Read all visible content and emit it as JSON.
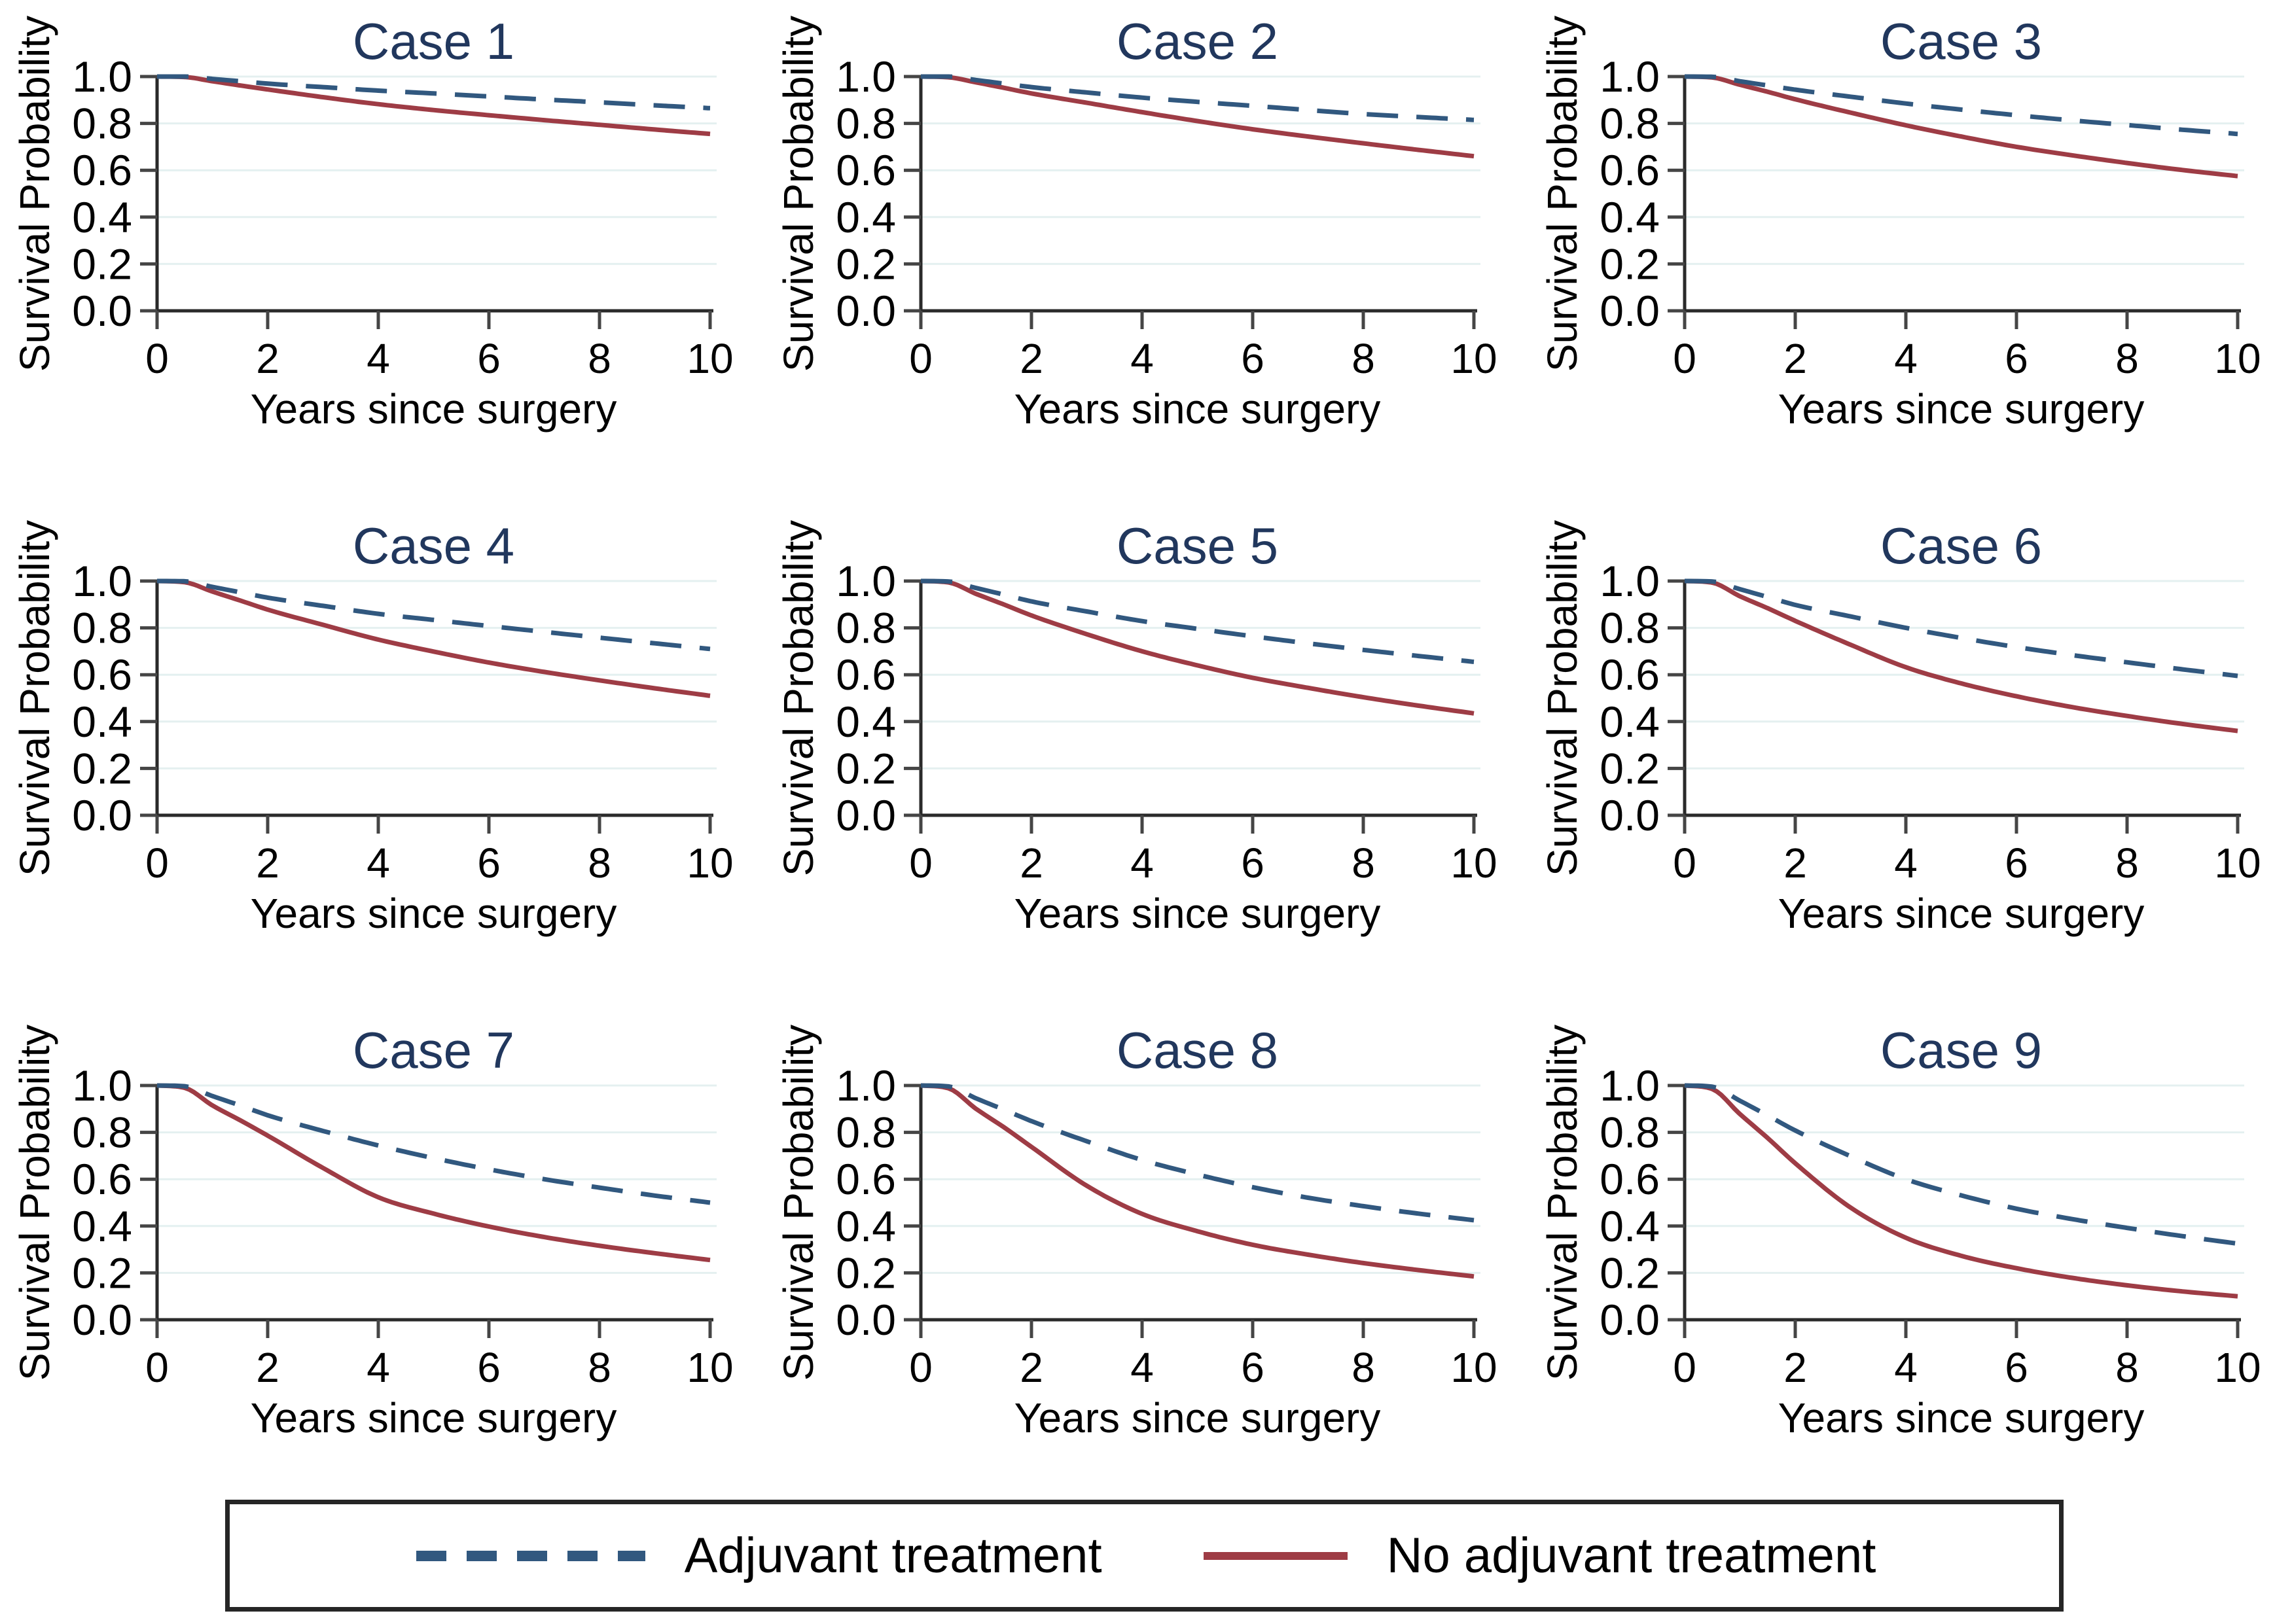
{
  "figure": {
    "colors": {
      "adjuvant_line": "#31587f",
      "no_adjuvant_line": "#9e3c45",
      "panel_title": "#21375d",
      "grid_line": "#e4f0f0",
      "axis_line": "#2a2a2a",
      "tick_mark": "#454545",
      "tick_label": "#000000",
      "legend_border": "#262626",
      "background": "#ffffff"
    },
    "legend": {
      "items": [
        {
          "label": "Adjuvant treatment",
          "style": "dashed",
          "color_key": "adjuvant_line"
        },
        {
          "label": "No adjuvant treatment",
          "style": "solid",
          "color_key": "no_adjuvant_line"
        }
      ]
    }
  },
  "chart_data": [
    {
      "type": "line",
      "title": "Case 1",
      "xlabel": "Years since surgery",
      "ylabel": "Survival Probability",
      "xlim": [
        0,
        10
      ],
      "ylim": [
        0.0,
        1.0
      ],
      "xticks": [
        0,
        2,
        4,
        6,
        8,
        10
      ],
      "yticks": [
        0.0,
        0.2,
        0.4,
        0.6,
        0.8,
        1.0
      ],
      "ytick_labels": [
        "0.0",
        "0.2",
        "0.4",
        "0.6",
        "0.8",
        "1.0"
      ],
      "grid": true,
      "legend_position": "shared-bottom",
      "x": [
        0,
        0.5,
        1,
        1.5,
        2,
        3,
        4,
        5,
        6,
        7,
        8,
        9,
        10
      ],
      "series": [
        {
          "name": "Adjuvant treatment",
          "line_style": "dashed",
          "values": [
            1.0,
            1.0,
            0.99,
            0.98,
            0.97,
            0.955,
            0.94,
            0.928,
            0.915,
            0.902,
            0.89,
            0.877,
            0.865
          ]
        },
        {
          "name": "No adjuvant treatment",
          "line_style": "solid",
          "values": [
            1.0,
            0.998,
            0.98,
            0.962,
            0.945,
            0.912,
            0.882,
            0.857,
            0.835,
            0.814,
            0.794,
            0.774,
            0.755
          ]
        }
      ]
    },
    {
      "type": "line",
      "title": "Case 2",
      "xlabel": "Years since surgery",
      "ylabel": "Survival Probability",
      "xlim": [
        0,
        10
      ],
      "ylim": [
        0.0,
        1.0
      ],
      "xticks": [
        0,
        2,
        4,
        6,
        8,
        10
      ],
      "yticks": [
        0.0,
        0.2,
        0.4,
        0.6,
        0.8,
        1.0
      ],
      "ytick_labels": [
        "0.0",
        "0.2",
        "0.4",
        "0.6",
        "0.8",
        "1.0"
      ],
      "grid": true,
      "legend_position": "shared-bottom",
      "x": [
        0,
        0.5,
        1,
        1.5,
        2,
        3,
        4,
        5,
        6,
        7,
        8,
        9,
        10
      ],
      "series": [
        {
          "name": "Adjuvant treatment",
          "line_style": "dashed",
          "values": [
            1.0,
            1.0,
            0.985,
            0.97,
            0.955,
            0.932,
            0.91,
            0.892,
            0.875,
            0.857,
            0.84,
            0.827,
            0.815
          ]
        },
        {
          "name": "No adjuvant treatment",
          "line_style": "solid",
          "values": [
            1.0,
            0.997,
            0.975,
            0.952,
            0.928,
            0.888,
            0.848,
            0.81,
            0.775,
            0.744,
            0.715,
            0.687,
            0.66
          ]
        }
      ]
    },
    {
      "type": "line",
      "title": "Case 3",
      "xlabel": "Years since surgery",
      "ylabel": "Survival Probability",
      "xlim": [
        0,
        10
      ],
      "ylim": [
        0.0,
        1.0
      ],
      "xticks": [
        0,
        2,
        4,
        6,
        8,
        10
      ],
      "yticks": [
        0.0,
        0.2,
        0.4,
        0.6,
        0.8,
        1.0
      ],
      "ytick_labels": [
        "0.0",
        "0.2",
        "0.4",
        "0.6",
        "0.8",
        "1.0"
      ],
      "grid": true,
      "legend_position": "shared-bottom",
      "x": [
        0,
        0.5,
        1,
        1.5,
        2,
        3,
        4,
        5,
        6,
        7,
        8,
        9,
        10
      ],
      "series": [
        {
          "name": "Adjuvant treatment",
          "line_style": "dashed",
          "values": [
            1.0,
            0.999,
            0.98,
            0.962,
            0.944,
            0.914,
            0.885,
            0.859,
            0.835,
            0.813,
            0.793,
            0.773,
            0.755
          ]
        },
        {
          "name": "No adjuvant treatment",
          "line_style": "solid",
          "values": [
            1.0,
            0.996,
            0.965,
            0.935,
            0.903,
            0.846,
            0.792,
            0.744,
            0.7,
            0.664,
            0.631,
            0.601,
            0.575
          ]
        }
      ]
    },
    {
      "type": "line",
      "title": "Case 4",
      "xlabel": "Years since surgery",
      "ylabel": "Survival Probability",
      "xlim": [
        0,
        10
      ],
      "ylim": [
        0.0,
        1.0
      ],
      "xticks": [
        0,
        2,
        4,
        6,
        8,
        10
      ],
      "yticks": [
        0.0,
        0.2,
        0.4,
        0.6,
        0.8,
        1.0
      ],
      "ytick_labels": [
        "0.0",
        "0.2",
        "0.4",
        "0.6",
        "0.8",
        "1.0"
      ],
      "grid": true,
      "legend_position": "shared-bottom",
      "x": [
        0,
        0.5,
        1,
        1.5,
        2,
        3,
        4,
        5,
        6,
        7,
        8,
        9,
        10
      ],
      "series": [
        {
          "name": "Adjuvant treatment",
          "line_style": "dashed",
          "values": [
            1.0,
            0.999,
            0.975,
            0.952,
            0.929,
            0.894,
            0.86,
            0.834,
            0.808,
            0.783,
            0.758,
            0.734,
            0.71
          ]
        },
        {
          "name": "No adjuvant treatment",
          "line_style": "solid",
          "values": [
            1.0,
            0.995,
            0.955,
            0.917,
            0.878,
            0.813,
            0.75,
            0.699,
            0.652,
            0.612,
            0.576,
            0.542,
            0.51
          ]
        }
      ]
    },
    {
      "type": "line",
      "title": "Case 5",
      "xlabel": "Years since surgery",
      "ylabel": "Survival Probability",
      "xlim": [
        0,
        10
      ],
      "ylim": [
        0.0,
        1.0
      ],
      "xticks": [
        0,
        2,
        4,
        6,
        8,
        10
      ],
      "yticks": [
        0.0,
        0.2,
        0.4,
        0.6,
        0.8,
        1.0
      ],
      "ytick_labels": [
        "0.0",
        "0.2",
        "0.4",
        "0.6",
        "0.8",
        "1.0"
      ],
      "grid": true,
      "legend_position": "shared-bottom",
      "x": [
        0,
        0.5,
        1,
        1.5,
        2,
        3,
        4,
        5,
        6,
        7,
        8,
        9,
        10
      ],
      "series": [
        {
          "name": "Adjuvant treatment",
          "line_style": "dashed",
          "values": [
            1.0,
            0.998,
            0.97,
            0.942,
            0.913,
            0.87,
            0.829,
            0.796,
            0.764,
            0.734,
            0.706,
            0.68,
            0.655
          ]
        },
        {
          "name": "No adjuvant treatment",
          "line_style": "solid",
          "values": [
            1.0,
            0.994,
            0.945,
            0.9,
            0.853,
            0.773,
            0.7,
            0.64,
            0.587,
            0.544,
            0.504,
            0.468,
            0.435
          ]
        }
      ]
    },
    {
      "type": "line",
      "title": "Case 6",
      "xlabel": "Years since surgery",
      "ylabel": "Survival Probability",
      "xlim": [
        0,
        10
      ],
      "ylim": [
        0.0,
        1.0
      ],
      "xticks": [
        0,
        2,
        4,
        6,
        8,
        10
      ],
      "yticks": [
        0.0,
        0.2,
        0.4,
        0.6,
        0.8,
        1.0
      ],
      "ytick_labels": [
        "0.0",
        "0.2",
        "0.4",
        "0.6",
        "0.8",
        "1.0"
      ],
      "grid": true,
      "legend_position": "shared-bottom",
      "x": [
        0,
        0.5,
        1,
        1.5,
        2,
        3,
        4,
        5,
        6,
        7,
        8,
        9,
        10
      ],
      "series": [
        {
          "name": "Adjuvant treatment",
          "line_style": "dashed",
          "values": [
            1.0,
            0.998,
            0.965,
            0.932,
            0.898,
            0.849,
            0.8,
            0.757,
            0.718,
            0.684,
            0.653,
            0.623,
            0.595
          ]
        },
        {
          "name": "No adjuvant treatment",
          "line_style": "solid",
          "values": [
            1.0,
            0.993,
            0.935,
            0.884,
            0.83,
            0.728,
            0.632,
            0.563,
            0.508,
            0.462,
            0.424,
            0.39,
            0.36
          ]
        }
      ]
    },
    {
      "type": "line",
      "title": "Case 7",
      "xlabel": "Years since surgery",
      "ylabel": "Survival Probability",
      "xlim": [
        0,
        10
      ],
      "ylim": [
        0.0,
        1.0
      ],
      "xticks": [
        0,
        2,
        4,
        6,
        8,
        10
      ],
      "yticks": [
        0.0,
        0.2,
        0.4,
        0.6,
        0.8,
        1.0
      ],
      "ytick_labels": [
        "0.0",
        "0.2",
        "0.4",
        "0.6",
        "0.8",
        "1.0"
      ],
      "grid": true,
      "legend_position": "shared-bottom",
      "x": [
        0,
        0.5,
        1,
        1.5,
        2,
        3,
        4,
        5,
        6,
        7,
        8,
        9,
        10
      ],
      "series": [
        {
          "name": "Adjuvant treatment",
          "line_style": "dashed",
          "values": [
            1.0,
            0.997,
            0.955,
            0.915,
            0.873,
            0.806,
            0.744,
            0.69,
            0.642,
            0.6,
            0.564,
            0.53,
            0.5
          ]
        },
        {
          "name": "No adjuvant treatment",
          "line_style": "solid",
          "values": [
            1.0,
            0.99,
            0.915,
            0.852,
            0.786,
            0.648,
            0.523,
            0.453,
            0.398,
            0.353,
            0.316,
            0.284,
            0.255
          ]
        }
      ]
    },
    {
      "type": "line",
      "title": "Case 8",
      "xlabel": "Years since surgery",
      "ylabel": "Survival Probability",
      "xlim": [
        0,
        10
      ],
      "ylim": [
        0.0,
        1.0
      ],
      "xticks": [
        0,
        2,
        4,
        6,
        8,
        10
      ],
      "yticks": [
        0.0,
        0.2,
        0.4,
        0.6,
        0.8,
        1.0
      ],
      "ytick_labels": [
        "0.0",
        "0.2",
        "0.4",
        "0.6",
        "0.8",
        "1.0"
      ],
      "grid": true,
      "legend_position": "shared-bottom",
      "x": [
        0,
        0.5,
        1,
        1.5,
        2,
        3,
        4,
        5,
        6,
        7,
        8,
        9,
        10
      ],
      "series": [
        {
          "name": "Adjuvant treatment",
          "line_style": "dashed",
          "values": [
            1.0,
            0.996,
            0.945,
            0.897,
            0.848,
            0.762,
            0.682,
            0.62,
            0.566,
            0.521,
            0.485,
            0.453,
            0.425
          ]
        },
        {
          "name": "No adjuvant treatment",
          "line_style": "solid",
          "values": [
            1.0,
            0.988,
            0.9,
            0.822,
            0.738,
            0.572,
            0.452,
            0.378,
            0.32,
            0.278,
            0.242,
            0.212,
            0.185
          ]
        }
      ]
    },
    {
      "type": "line",
      "title": "Case 9",
      "xlabel": "Years since surgery",
      "ylabel": "Survival Probability",
      "xlim": [
        0,
        10
      ],
      "ylim": [
        0.0,
        1.0
      ],
      "xticks": [
        0,
        2,
        4,
        6,
        8,
        10
      ],
      "yticks": [
        0.0,
        0.2,
        0.4,
        0.6,
        0.8,
        1.0
      ],
      "ytick_labels": [
        "0.0",
        "0.2",
        "0.4",
        "0.6",
        "0.8",
        "1.0"
      ],
      "grid": true,
      "legend_position": "shared-bottom",
      "x": [
        0,
        0.5,
        1,
        1.5,
        2,
        3,
        4,
        5,
        6,
        7,
        8,
        9,
        10
      ],
      "series": [
        {
          "name": "Adjuvant treatment",
          "line_style": "dashed",
          "values": [
            1.0,
            0.995,
            0.935,
            0.872,
            0.808,
            0.698,
            0.6,
            0.531,
            0.474,
            0.43,
            0.392,
            0.357,
            0.325
          ]
        },
        {
          "name": "No adjuvant treatment",
          "line_style": "solid",
          "values": [
            1.0,
            0.985,
            0.878,
            0.776,
            0.668,
            0.479,
            0.35,
            0.273,
            0.22,
            0.179,
            0.147,
            0.121,
            0.1
          ]
        }
      ]
    }
  ]
}
